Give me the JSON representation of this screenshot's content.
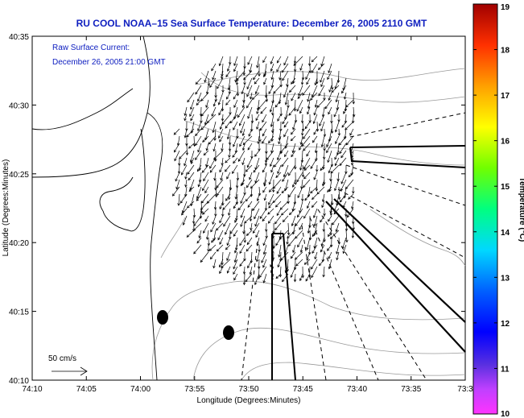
{
  "title": "RU COOL  NOAA–15  Sea Surface Temperature:  December 26, 2005 2110 GMT",
  "annotation": {
    "line1": "Raw Surface Current:",
    "line2": "December 26, 2005 21:00 GMT"
  },
  "axes": {
    "xlabel": "Longitude (Degrees:Minutes)",
    "ylabel": "Latitude (Degrees:Minutes)",
    "x_ticks": [
      "74:10",
      "74:05",
      "74:00",
      "73:55",
      "73:50",
      "73:45",
      "73:40",
      "73:35",
      "73:3"
    ],
    "y_ticks": [
      "40:35",
      "40:30",
      "40:25",
      "40:20",
      "40:15",
      "40:10"
    ]
  },
  "colorbar": {
    "label": "Temperature (°C)",
    "min": 10,
    "max": 19,
    "ticks": [
      "19",
      "18",
      "17",
      "16",
      "15",
      "14",
      "13",
      "12",
      "11",
      "10"
    ]
  },
  "scale_label": "50 cm/s",
  "colors": {
    "title": "#1020c0",
    "contour": "#999999",
    "coast": "#000000"
  }
}
